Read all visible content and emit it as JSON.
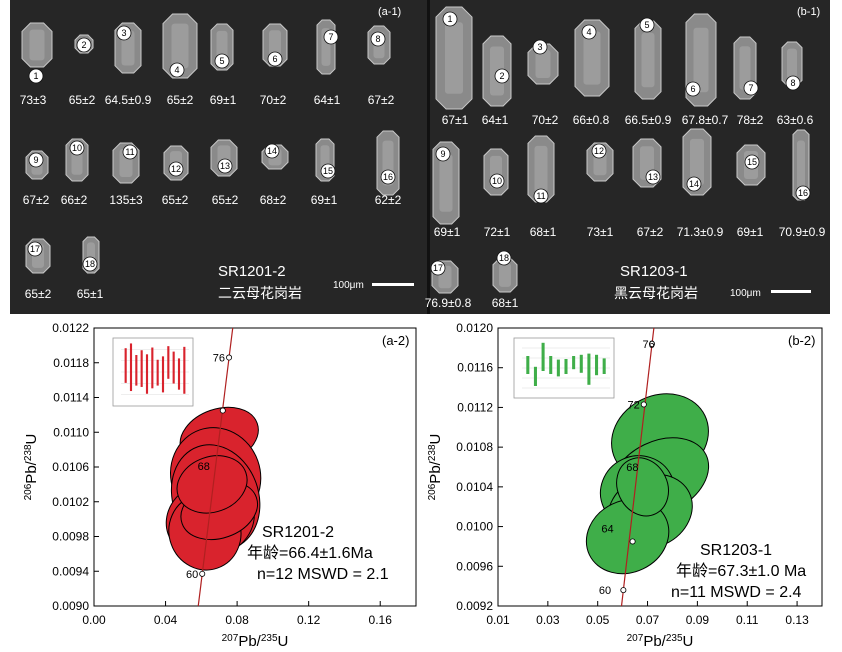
{
  "cl": {
    "a": {
      "panel_label": "(a-1)",
      "sample": "SR1201-2",
      "rock": "二云母花岗岩",
      "scale": "100μm",
      "grains": [
        {
          "spot": "1",
          "age": "73±3"
        },
        {
          "spot": "2",
          "age": "65±2"
        },
        {
          "spot": "3",
          "age": "64.5±0.9"
        },
        {
          "spot": "4",
          "age": "65±2"
        },
        {
          "spot": "5",
          "age": "69±1"
        },
        {
          "spot": "6",
          "age": "70±2"
        },
        {
          "spot": "7",
          "age": "64±1"
        },
        {
          "spot": "8",
          "age": "67±2"
        },
        {
          "spot": "9",
          "age": "67±2"
        },
        {
          "spot": "10",
          "age": "66±2"
        },
        {
          "spot": "11",
          "age": "135±3"
        },
        {
          "spot": "12",
          "age": "65±2"
        },
        {
          "spot": "13",
          "age": "65±2"
        },
        {
          "spot": "14",
          "age": "68±2"
        },
        {
          "spot": "15",
          "age": "69±1"
        },
        {
          "spot": "16",
          "age": "62±2"
        },
        {
          "spot": "17",
          "age": "65±2"
        },
        {
          "spot": "18",
          "age": "65±1"
        }
      ]
    },
    "b": {
      "panel_label": "(b-1)",
      "sample": "SR1203-1",
      "rock": "黑云母花岗岩",
      "scale": "100μm",
      "grains": [
        {
          "spot": "1",
          "age": "67±1"
        },
        {
          "spot": "2",
          "age": "64±1"
        },
        {
          "spot": "3",
          "age": "70±2"
        },
        {
          "spot": "4",
          "age": "66±0.8"
        },
        {
          "spot": "5",
          "age": "66.5±0.9"
        },
        {
          "spot": "6",
          "age": "67.8±0.7"
        },
        {
          "spot": "7",
          "age": "78±2"
        },
        {
          "spot": "8",
          "age": "63±0.6"
        },
        {
          "spot": "9",
          "age": "69±1"
        },
        {
          "spot": "10",
          "age": "72±1"
        },
        {
          "spot": "11",
          "age": "68±1"
        },
        {
          "spot": "12",
          "age": "73±1"
        },
        {
          "spot": "13",
          "age": "67±2"
        },
        {
          "spot": "14",
          "age": "71.3±0.9"
        },
        {
          "spot": "15",
          "age": "69±1"
        },
        {
          "spot": "16",
          "age": "70.9±0.9"
        },
        {
          "spot": "17",
          "age": "76.9±0.8"
        },
        {
          "spot": "18",
          "age": "68±1"
        }
      ]
    }
  },
  "chart_data": [
    {
      "type": "scatter",
      "panel_label": "(a-2)",
      "xlabel_sup": "207",
      "xlabel_a": "Pb/",
      "xlabel_sup2": "235",
      "xlabel_b": "U",
      "ylabel_sup": "206",
      "ylabel_a": "Pb/",
      "ylabel_sup2": "238",
      "ylabel_b": "U",
      "xlim": [
        0.0,
        0.18
      ],
      "ylim": [
        0.009,
        0.0122
      ],
      "xticks": [
        "0.00",
        "0.04",
        "0.08",
        "0.12",
        "0.16"
      ],
      "yticks": [
        "0.0090",
        "0.0094",
        "0.0098",
        "0.0102",
        "0.0106",
        "0.0110",
        "0.0114",
        "0.0118",
        "0.0122"
      ],
      "concordia_labels": [
        {
          "age": "76",
          "x": 0.0755,
          "y": 0.01186
        },
        {
          "age": "68",
          "x": 0.067,
          "y": 0.01061
        },
        {
          "age": "60",
          "x": 0.0605,
          "y": 0.00937
        }
      ],
      "concordia_points": [
        [
          0.0605,
          0.00937
        ],
        [
          0.072,
          0.01125
        ],
        [
          0.0755,
          0.01186
        ]
      ],
      "ellipses": [
        {
          "x": 0.07,
          "y": 0.01095,
          "rx": 0.045,
          "ry": 0.0003,
          "rot": 0.35
        },
        {
          "x": 0.068,
          "y": 0.0105,
          "rx": 0.05,
          "ry": 0.0007,
          "rot": 0.35
        },
        {
          "x": 0.068,
          "y": 0.01025,
          "rx": 0.048,
          "ry": 0.0008,
          "rot": 0.35
        },
        {
          "x": 0.065,
          "y": 0.01,
          "rx": 0.05,
          "ry": 0.0005,
          "rot": 0.35
        },
        {
          "x": 0.062,
          "y": 0.00985,
          "rx": 0.04,
          "ry": 0.0005,
          "rot": 0.35
        },
        {
          "x": 0.07,
          "y": 0.0101,
          "rx": 0.044,
          "ry": 0.0003,
          "rot": 0.35
        },
        {
          "x": 0.066,
          "y": 0.0104,
          "rx": 0.04,
          "ry": 0.0003,
          "rot": 0.35
        }
      ],
      "inset_bars": [
        [
          0.34,
          0.85
        ],
        [
          0.22,
          0.92
        ],
        [
          0.3,
          0.75
        ],
        [
          0.28,
          0.82
        ],
        [
          0.18,
          0.76
        ],
        [
          0.26,
          0.86
        ],
        [
          0.3,
          0.68
        ],
        [
          0.2,
          0.73
        ],
        [
          0.4,
          0.88
        ],
        [
          0.33,
          0.8
        ],
        [
          0.24,
          0.7
        ],
        [
          0.18,
          0.87
        ]
      ],
      "sample": "SR1201-2",
      "age_text": "年龄=66.4±1.6Ma",
      "stats_text": "n=12  MSWD = 2.1"
    },
    {
      "type": "scatter",
      "panel_label": "(b-2)",
      "xlabel_sup": "207",
      "xlabel_a": "Pb/",
      "xlabel_sup2": "235",
      "xlabel_b": "U",
      "ylabel_sup": "206",
      "ylabel_a": "Pb/",
      "ylabel_sup2": "238",
      "ylabel_b": "U",
      "xlim": [
        0.01,
        0.14
      ],
      "ylim": [
        0.0092,
        0.012
      ],
      "xticks": [
        "0.01",
        "0.03",
        "0.05",
        "0.07",
        "0.09",
        "0.11",
        "0.13"
      ],
      "yticks": [
        "0.0092",
        "0.0096",
        "0.0100",
        "0.0104",
        "0.0108",
        "0.0112",
        "0.0116",
        "0.0120"
      ],
      "concordia_labels": [
        {
          "age": "76",
          "x": 0.0745,
          "y": 0.01184
        },
        {
          "age": "72",
          "x": 0.0685,
          "y": 0.01123
        },
        {
          "age": "68",
          "x": 0.068,
          "y": 0.0106
        },
        {
          "age": "64",
          "x": 0.058,
          "y": 0.00998
        },
        {
          "age": "60",
          "x": 0.057,
          "y": 0.00936
        }
      ],
      "concordia_points": [
        [
          0.0603,
          0.00936
        ],
        [
          0.064,
          0.00985
        ],
        [
          0.0685,
          0.01123
        ],
        [
          0.0718,
          0.01184
        ]
      ],
      "ellipses": [
        {
          "x": 0.075,
          "y": 0.0109,
          "rx": 0.04,
          "ry": 0.0005,
          "rot": 0.48
        },
        {
          "x": 0.075,
          "y": 0.0105,
          "rx": 0.041,
          "ry": 0.0004,
          "rot": 0.48
        },
        {
          "x": 0.066,
          "y": 0.01035,
          "rx": 0.03,
          "ry": 0.0004,
          "rot": 0.48
        },
        {
          "x": 0.071,
          "y": 0.01015,
          "rx": 0.035,
          "ry": 0.0004,
          "rot": 0.48
        },
        {
          "x": 0.062,
          "y": 0.0099,
          "rx": 0.034,
          "ry": 0.0004,
          "rot": 0.48
        },
        {
          "x": 0.068,
          "y": 0.0104,
          "rx": 0.02,
          "ry": 0.0003,
          "rot": 0.48
        }
      ],
      "inset_bars": [
        [
          0.4,
          0.7
        ],
        [
          0.2,
          0.52
        ],
        [
          0.45,
          0.92
        ],
        [
          0.4,
          0.7
        ],
        [
          0.36,
          0.64
        ],
        [
          0.4,
          0.65
        ],
        [
          0.48,
          0.7
        ],
        [
          0.42,
          0.72
        ],
        [
          0.22,
          0.74
        ],
        [
          0.38,
          0.72
        ],
        [
          0.4,
          0.66
        ]
      ],
      "sample": "SR1203-1",
      "age_text": "年龄=67.3±1.0 Ma",
      "stats_text": "n=11   MSWD = 2.4"
    }
  ]
}
